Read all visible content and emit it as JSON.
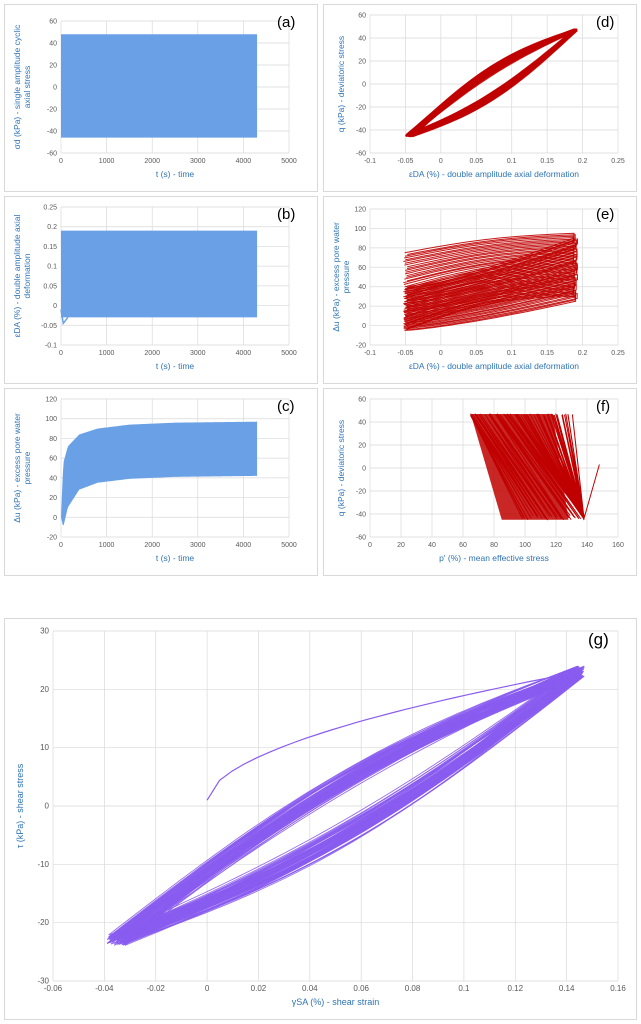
{
  "colors": {
    "blue": "#6aa1e6",
    "red": "#c00000",
    "purple": "#8a5cf0",
    "grid": "#d9d9d9",
    "label": "#2e74b5"
  },
  "chart_data": [
    {
      "id": "a",
      "type": "area",
      "tag": "(a)",
      "xlabel": "t (s) - time",
      "ylabel": [
        "σd (kPa) - single amplitude cyclic",
        "axial stress"
      ],
      "xlim": [
        0,
        5000
      ],
      "ylim": [
        -60,
        60
      ],
      "xticks": [
        "0",
        "1000",
        "2000",
        "3000",
        "4000",
        "5000"
      ],
      "yticks": [
        "-60",
        "-40",
        "-20",
        "0",
        "20",
        "40",
        "60"
      ],
      "series": [
        {
          "name": "cyclic axial stress",
          "t_start": 0,
          "t_end": 4300,
          "upper": 48,
          "lower": -46
        }
      ]
    },
    {
      "id": "b",
      "type": "area",
      "tag": "(b)",
      "xlabel": "t (s) - time",
      "ylabel": [
        "εDA (%) - double amplitude axial",
        "deformation"
      ],
      "xlim": [
        0,
        5000
      ],
      "ylim": [
        -0.1,
        0.25
      ],
      "xticks": [
        "0",
        "1000",
        "2000",
        "3000",
        "4000",
        "5000"
      ],
      "yticks": [
        "-0.1",
        "-0.05",
        "0",
        "0.05",
        "0.1",
        "0.15",
        "0.2",
        "0.25"
      ],
      "series": [
        {
          "name": "axial deformation",
          "t_start": 0,
          "t_end": 4300,
          "upper": 0.19,
          "lower": -0.03
        }
      ]
    },
    {
      "id": "c",
      "type": "area",
      "tag": "(c)",
      "xlabel": "t (s) - time",
      "ylabel": [
        "Δu (kPa) - excess pore water",
        "pressure"
      ],
      "xlim": [
        0,
        5000
      ],
      "ylim": [
        -20,
        120
      ],
      "xticks": [
        "0",
        "1000",
        "2000",
        "3000",
        "4000",
        "5000"
      ],
      "yticks": [
        "-20",
        "0",
        "20",
        "40",
        "60",
        "80",
        "100",
        "120"
      ],
      "series": [
        {
          "name": "excess pore water pressure",
          "t_end": 4300,
          "upper": [
            [
              0,
              0
            ],
            [
              50,
              55
            ],
            [
              150,
              72
            ],
            [
              400,
              84
            ],
            [
              800,
              90
            ],
            [
              1500,
              94
            ],
            [
              2500,
              96
            ],
            [
              4300,
              97
            ]
          ],
          "lower": [
            [
              0,
              0
            ],
            [
              50,
              -10
            ],
            [
              150,
              10
            ],
            [
              400,
              28
            ],
            [
              800,
              35
            ],
            [
              1500,
              39
            ],
            [
              2500,
              41
            ],
            [
              4300,
              42
            ]
          ]
        }
      ]
    },
    {
      "id": "d",
      "type": "line",
      "tag": "(d)",
      "xlabel": "εDA (%) - double amplitude axial deformation",
      "ylabel": [
        "q (kPa) - deviatoric stress"
      ],
      "xlim": [
        -0.1,
        0.25
      ],
      "ylim": [
        -60,
        60
      ],
      "xticks": [
        "-0.1",
        "-0.05",
        "0",
        "0.05",
        "0.1",
        "0.15",
        "0.2",
        "0.25"
      ],
      "yticks": [
        "-60",
        "-40",
        "-20",
        "0",
        "20",
        "40",
        "60"
      ],
      "series": [
        {
          "name": "hysteresis loops",
          "x_min": -0.045,
          "x_max": 0.19,
          "y_min": -45,
          "y_max": 47
        }
      ]
    },
    {
      "id": "e",
      "type": "line",
      "tag": "(e)",
      "xlabel": "εDA (%) - double amplitude axial deformation",
      "ylabel": [
        "Δu (kPa) - excess pore water",
        "pressure"
      ],
      "xlim": [
        -0.1,
        0.25
      ],
      "ylim": [
        -20,
        120
      ],
      "xticks": [
        "-0.1",
        "-0.05",
        "0",
        "0.05",
        "0.1",
        "0.15",
        "0.2",
        "0.25"
      ],
      "yticks": [
        "-20",
        "0",
        "20",
        "40",
        "60",
        "80",
        "100",
        "120"
      ],
      "series": [
        {
          "name": "pore pressure loops",
          "x_min": -0.05,
          "x_max": 0.19,
          "y_min": -5,
          "y_max": 96
        }
      ]
    },
    {
      "id": "f",
      "type": "line",
      "tag": "(f)",
      "xlabel": "p' (%) - mean effective stress",
      "ylabel": [
        "q (kPa) - deviatoric stress"
      ],
      "xlim": [
        0,
        160
      ],
      "ylim": [
        -60,
        60
      ],
      "xticks": [
        "0",
        "20",
        "40",
        "60",
        "80",
        "100",
        "120",
        "140",
        "160"
      ],
      "yticks": [
        "-60",
        "-40",
        "-20",
        "0",
        "20",
        "40",
        "60"
      ],
      "series": [
        {
          "name": "stress path",
          "p_start": 148,
          "q_start": 3,
          "p_end": 65,
          "q_top": 47,
          "q_bottom": -45
        }
      ]
    },
    {
      "id": "g",
      "type": "line",
      "tag": "(g)",
      "xlabel": "γSA (%) - shear strain",
      "ylabel": [
        "τ (kPa) - shear stress"
      ],
      "xlim": [
        -0.06,
        0.16
      ],
      "ylim": [
        -30,
        30
      ],
      "xticks": [
        "-0.06",
        "-0.04",
        "-0.02",
        "0",
        "0.02",
        "0.04",
        "0.06",
        "0.08",
        "0.1",
        "0.12",
        "0.14",
        "0.16"
      ],
      "yticks": [
        "-30",
        "-20",
        "-10",
        "0",
        "10",
        "20",
        "30"
      ],
      "series": [
        {
          "name": "shear hysteresis loops",
          "x_min": -0.035,
          "x_max": 0.145,
          "y_min": -23,
          "y_max": 23,
          "start": [
            0,
            1
          ]
        }
      ]
    }
  ]
}
